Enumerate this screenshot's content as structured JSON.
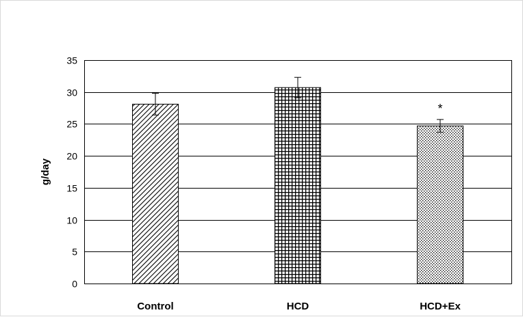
{
  "chart_data": {
    "type": "bar",
    "categories": [
      "Control",
      "HCD",
      "HCD+Ex"
    ],
    "values": [
      28.1,
      30.7,
      24.7
    ],
    "error": [
      1.7,
      1.6,
      1.0
    ],
    "annotations": [
      "",
      "",
      "*"
    ],
    "ylabel": "g/day",
    "xlabel": "",
    "ylim": [
      0,
      35
    ],
    "yticks": [
      0,
      5,
      10,
      15,
      20,
      25,
      30,
      35
    ],
    "grid": true,
    "legend": "none",
    "bar_patterns": [
      "diagonal-hatch-icon",
      "grid-hatch-icon",
      "dotted-fill-icon"
    ],
    "colors": {
      "ink": "#000000",
      "grid": "#000000",
      "background": "#ffffff",
      "frame": "#d9d9d9"
    }
  }
}
